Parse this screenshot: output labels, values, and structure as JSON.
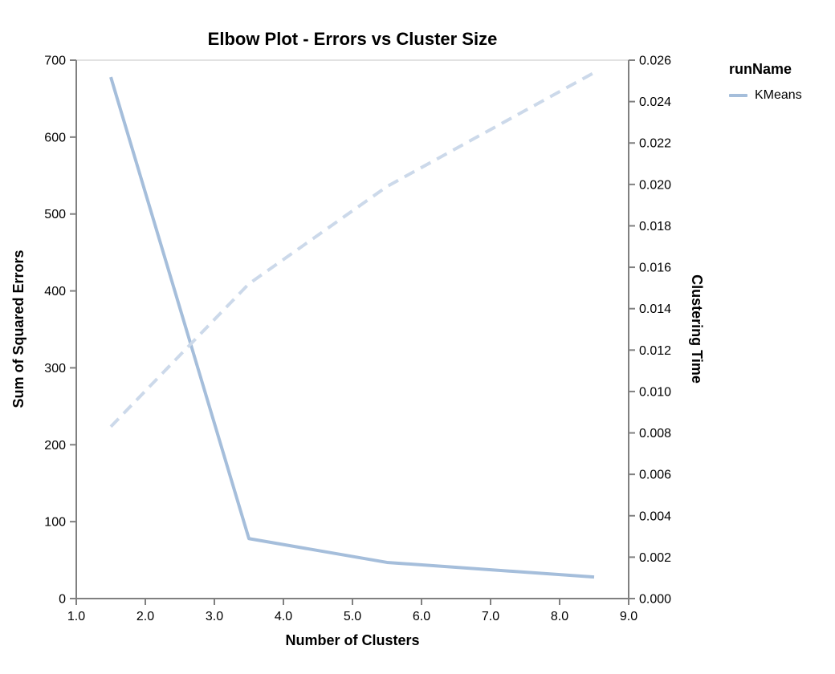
{
  "title": "Elbow Plot - Errors vs Cluster Size",
  "legend": {
    "title": "runName",
    "items": [
      {
        "label": "KMeans",
        "color": "#a5bedb"
      }
    ]
  },
  "chart_data": {
    "type": "line",
    "title": "Elbow Plot - Errors vs Cluster Size",
    "xlabel": "Number of Clusters",
    "ylabel_left": "Sum of Squared Errors",
    "ylabel_right": "Clustering Time",
    "grid": false,
    "legend_position": "top-right",
    "x_range": [
      1,
      9
    ],
    "x_ticks": [
      "1.0",
      "2.0",
      "3.0",
      "4.0",
      "5.0",
      "6.0",
      "7.0",
      "8.0",
      "9.0"
    ],
    "y_left_range": [
      0,
      700
    ],
    "y_left_ticks": [
      "0",
      "100",
      "200",
      "300",
      "400",
      "500",
      "600",
      "700"
    ],
    "y_right_range": [
      0,
      0.026
    ],
    "y_right_ticks": [
      "0.000",
      "0.002",
      "0.004",
      "0.006",
      "0.008",
      "0.010",
      "0.012",
      "0.014",
      "0.016",
      "0.018",
      "0.020",
      "0.022",
      "0.024",
      "0.026"
    ],
    "series": [
      {
        "name": "KMeans - Sum of Squared Errors",
        "axis": "left",
        "style": "solid",
        "color": "#a5bedb",
        "x": [
          1.5,
          3.5,
          5.5,
          8.5
        ],
        "y": [
          678,
          78,
          47,
          28
        ]
      },
      {
        "name": "KMeans - Clustering Time",
        "axis": "right",
        "style": "dashed",
        "color": "#ccd9ea",
        "x": [
          1.5,
          3.5,
          5.5,
          8.5
        ],
        "y": [
          0.0083,
          0.0152,
          0.0199,
          0.0254
        ]
      }
    ],
    "colors": {
      "axis": "#808080",
      "top_border": "#d9d9d9",
      "text": "#000000"
    }
  }
}
